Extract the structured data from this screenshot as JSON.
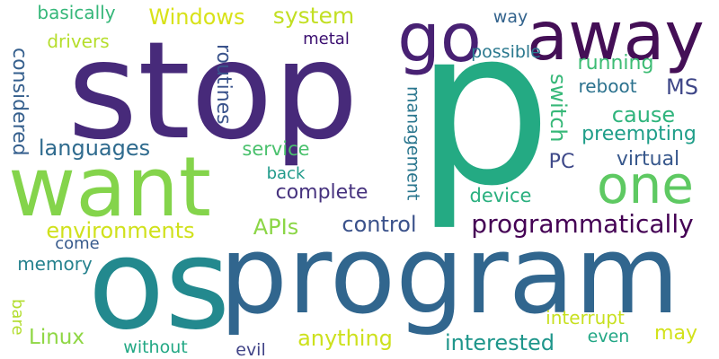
{
  "background": "#ffffff",
  "words": [
    {
      "text": "stop",
      "color": "#472a7a",
      "vertical": false
    },
    {
      "text": "p",
      "color": "#24aa83",
      "vertical": false
    },
    {
      "text": "os",
      "color": "#23898e",
      "vertical": false
    },
    {
      "text": "program",
      "color": "#31668e",
      "vertical": false
    },
    {
      "text": "away",
      "color": "#440f56",
      "vertical": false
    },
    {
      "text": "go",
      "color": "#482173",
      "vertical": false
    },
    {
      "text": "want",
      "color": "#84d44b",
      "vertical": false
    },
    {
      "text": "one",
      "color": "#5ec962",
      "vertical": false
    },
    {
      "text": "programmatically",
      "color": "#440154",
      "vertical": false
    },
    {
      "text": "basically",
      "color": "#35b779",
      "vertical": false
    },
    {
      "text": "Windows",
      "color": "#d8e219",
      "vertical": false
    },
    {
      "text": "system",
      "color": "#c2df23",
      "vertical": false
    },
    {
      "text": "drivers",
      "color": "#b5de2b",
      "vertical": false
    },
    {
      "text": "metal",
      "color": "#3b0f70",
      "vertical": false
    },
    {
      "text": "way",
      "color": "#33638d",
      "vertical": false
    },
    {
      "text": "possible",
      "color": "#2a788e",
      "vertical": false
    },
    {
      "text": "running",
      "color": "#3dbc74",
      "vertical": false
    },
    {
      "text": "reboot",
      "color": "#2c728e",
      "vertical": false
    },
    {
      "text": "MS",
      "color": "#3f4788",
      "vertical": false
    },
    {
      "text": "cause",
      "color": "#2fb47c",
      "vertical": false
    },
    {
      "text": "preempting",
      "color": "#1f9e89",
      "vertical": false
    },
    {
      "text": "languages",
      "color": "#2f6b8e",
      "vertical": false
    },
    {
      "text": "service",
      "color": "#4ac16d",
      "vertical": false
    },
    {
      "text": "PC",
      "color": "#3e4989",
      "vertical": false
    },
    {
      "text": "virtual",
      "color": "#38588c",
      "vertical": false
    },
    {
      "text": "complete",
      "color": "#46327e",
      "vertical": false
    },
    {
      "text": "back",
      "color": "#1f9a8a",
      "vertical": false
    },
    {
      "text": "device",
      "color": "#2ab07f",
      "vertical": false
    },
    {
      "text": "environments",
      "color": "#d0e11c",
      "vertical": false
    },
    {
      "text": "APIs",
      "color": "#8bd646",
      "vertical": false
    },
    {
      "text": "control",
      "color": "#3b528b",
      "vertical": false
    },
    {
      "text": "come",
      "color": "#375a8c",
      "vertical": false
    },
    {
      "text": "memory",
      "color": "#26828e",
      "vertical": false
    },
    {
      "text": "interrupt",
      "color": "#c8e020",
      "vertical": false
    },
    {
      "text": "may",
      "color": "#d2e21b",
      "vertical": false
    },
    {
      "text": "Linux",
      "color": "#8fd744",
      "vertical": false
    },
    {
      "text": "anything",
      "color": "#cde11d",
      "vertical": false
    },
    {
      "text": "interested",
      "color": "#1f968b",
      "vertical": false
    },
    {
      "text": "even",
      "color": "#22a785",
      "vertical": false
    },
    {
      "text": "without",
      "color": "#22a884",
      "vertical": false
    },
    {
      "text": "evil",
      "color": "#414487",
      "vertical": false
    },
    {
      "text": "considered",
      "color": "#355f8d",
      "vertical": true
    },
    {
      "text": "routines",
      "color": "#3a538b",
      "vertical": true
    },
    {
      "text": "management",
      "color": "#2a768e",
      "vertical": true
    },
    {
      "text": "switch",
      "color": "#37b878",
      "vertical": true
    },
    {
      "text": "bare",
      "color": "#b2dd2d",
      "vertical": true
    }
  ]
}
